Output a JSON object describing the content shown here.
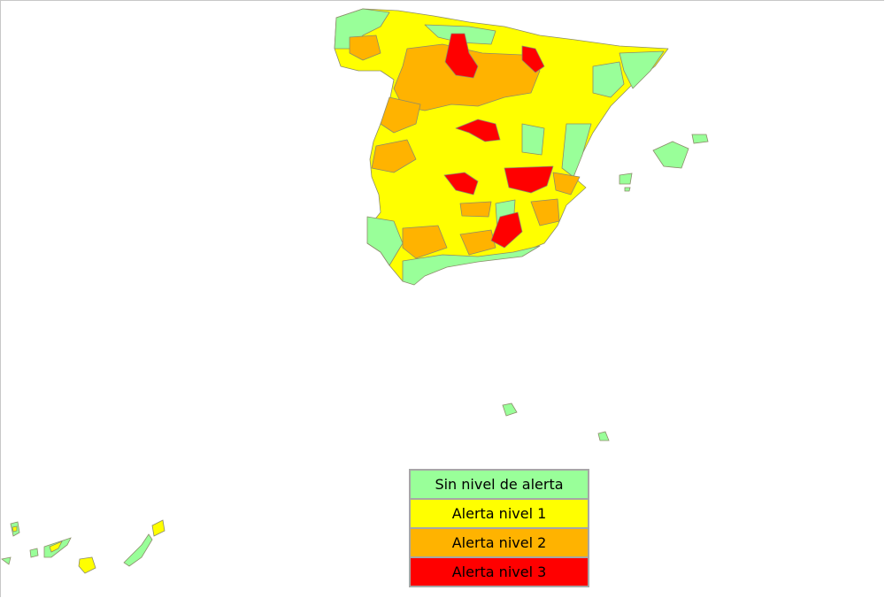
{
  "colors": {
    "none": "#99ff99",
    "level1": "#ffff00",
    "level2": "#ffb300",
    "level3": "#ff0000",
    "border": "#8c8c6a"
  },
  "legend": {
    "items": [
      {
        "label": "Sin nivel de alerta",
        "color": "#99ff99"
      },
      {
        "label": "Alerta nivel 1",
        "color": "#ffff00"
      },
      {
        "label": "Alerta nivel 2",
        "color": "#ffb300"
      },
      {
        "label": "Alerta nivel 3",
        "color": "#ff0000"
      }
    ]
  }
}
